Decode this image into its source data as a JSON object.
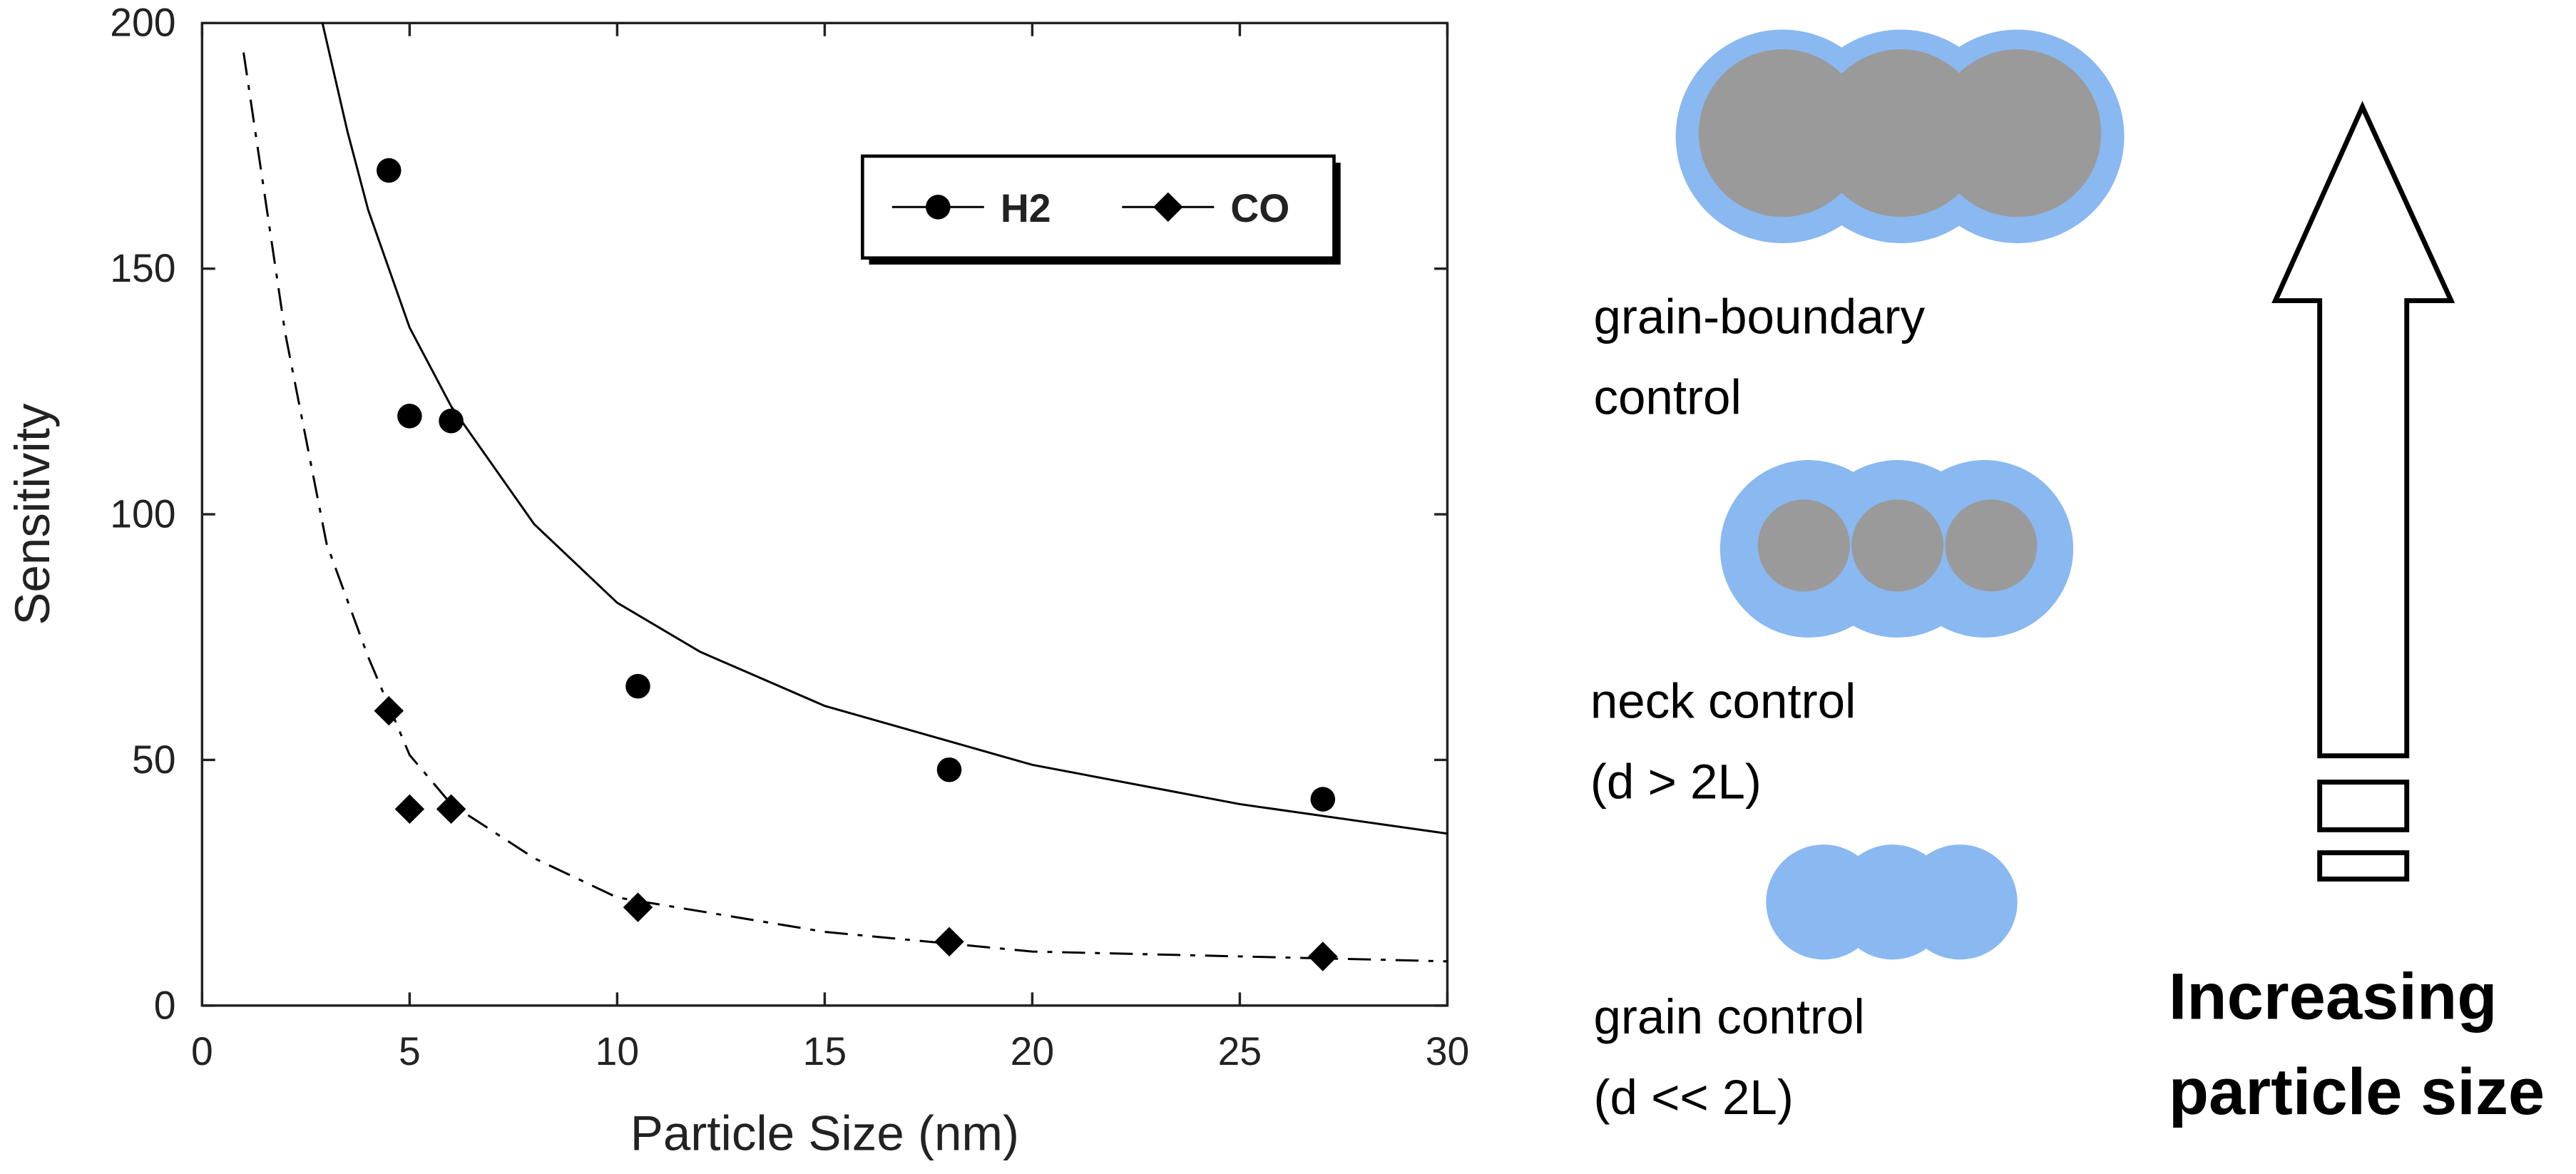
{
  "chart_data": {
    "type": "scatter",
    "xlabel": "Particle Size (nm)",
    "ylabel": "Sensitivity",
    "xlim": [
      0,
      30
    ],
    "xticks": [
      0,
      5,
      10,
      15,
      20,
      25,
      30
    ],
    "ylim": [
      0,
      200
    ],
    "yticks": [
      0,
      50,
      100,
      150,
      200
    ],
    "legend_loc": "upper right",
    "series": [
      {
        "name": "H2",
        "color": "#000000",
        "marker": "circle",
        "dash": "solid",
        "x": [
          4.5,
          5,
          6,
          10.5,
          18,
          27
        ],
        "values": [
          170,
          120,
          119,
          65,
          48,
          42
        ],
        "fit": {
          "x": [
            2.9,
            3.5,
            4,
            5,
            6,
            8,
            10,
            12,
            15,
            20,
            25,
            30
          ],
          "values": [
            200,
            178,
            162,
            138,
            122,
            98,
            82,
            72,
            61,
            49,
            41,
            35
          ]
        }
      },
      {
        "name": "CO",
        "color": "#000000",
        "marker": "diamond",
        "dash": "dashdot",
        "x": [
          4.5,
          5,
          6,
          10.5,
          18,
          27
        ],
        "values": [
          60,
          40,
          40,
          20,
          13,
          10
        ],
        "fit": {
          "x": [
            1,
            2,
            3,
            4,
            5,
            6,
            8,
            10,
            15,
            20,
            30
          ],
          "values": [
            194,
            137,
            94,
            71,
            51,
            41,
            30,
            22,
            15,
            11,
            9
          ]
        }
      }
    ]
  },
  "diagram": {
    "grain_boundary": [
      "grain-boundary",
      "control"
    ],
    "neck": [
      "neck control",
      "(d > 2L)"
    ],
    "grain": [
      "grain control",
      "(d << 2L)"
    ],
    "arrow_label": [
      "Increasing",
      "particle size"
    ]
  }
}
